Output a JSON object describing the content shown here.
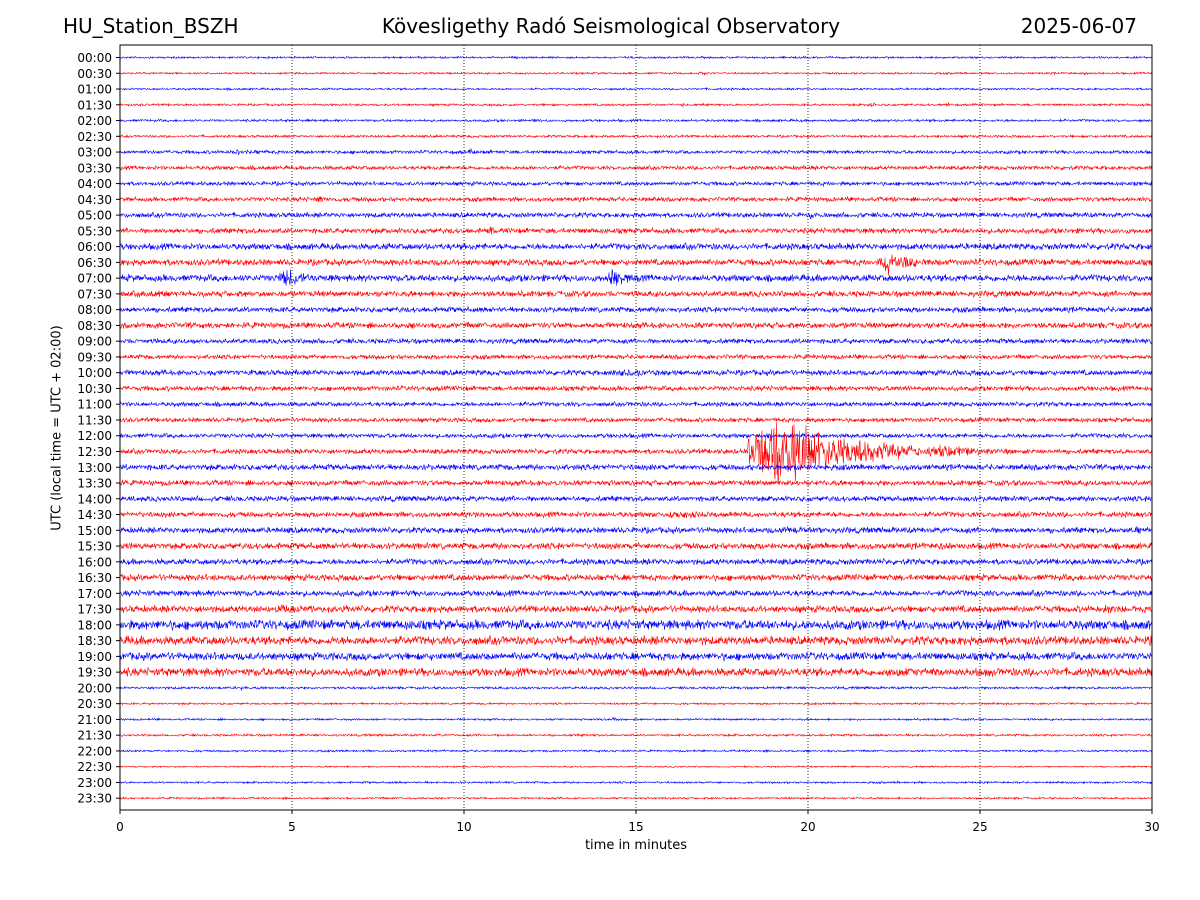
{
  "header": {
    "station": "HU_Station_BSZH",
    "observatory": "Kövesligethy Radó Seismological Observatory",
    "date": "2025-06-07"
  },
  "chart_data": {
    "type": "line",
    "title": "Kövesligethy Radó Seismological Observatory",
    "xlabel": "time in minutes",
    "ylabel": "UTC (local time = UTC + 02:00)",
    "xlim": [
      0,
      30
    ],
    "x_ticks": [
      "0",
      "5",
      "10",
      "15",
      "20",
      "25",
      "30"
    ],
    "grid": "vertical dotted lines at x ticks",
    "colors": {
      "even_rows": "#0000ff",
      "odd_rows": "#ff0000",
      "grid": "#000000"
    },
    "row_labels": [
      "00:00",
      "00:30",
      "01:00",
      "01:30",
      "02:00",
      "02:30",
      "03:00",
      "03:30",
      "04:00",
      "04:30",
      "05:00",
      "05:30",
      "06:00",
      "06:30",
      "07:00",
      "07:30",
      "08:00",
      "08:30",
      "09:00",
      "09:30",
      "10:00",
      "10:30",
      "11:00",
      "11:30",
      "12:00",
      "12:30",
      "13:00",
      "13:30",
      "14:00",
      "14:30",
      "15:00",
      "15:30",
      "16:00",
      "16:30",
      "17:00",
      "17:30",
      "18:00",
      "18:30",
      "19:00",
      "19:30",
      "20:00",
      "20:30",
      "21:00",
      "21:30",
      "22:00",
      "22:30",
      "23:00",
      "23:30"
    ],
    "noise_level": [
      0.8,
      0.8,
      0.8,
      0.9,
      1.0,
      1.0,
      1.4,
      1.6,
      1.6,
      1.8,
      2.0,
      2.2,
      2.6,
      2.6,
      2.8,
      2.4,
      2.2,
      2.4,
      2.0,
      1.8,
      2.2,
      2.0,
      1.8,
      1.8,
      1.8,
      2.0,
      2.4,
      2.2,
      2.2,
      2.2,
      2.4,
      2.6,
      2.4,
      2.6,
      2.4,
      2.8,
      4.0,
      3.6,
      3.2,
      3.4,
      1.0,
      0.8,
      0.8,
      0.9,
      0.8,
      0.6,
      0.8,
      0.8
    ],
    "events": [
      {
        "row": "00:30",
        "t": 16.8,
        "dur": 0.6,
        "amp": 3
      },
      {
        "row": "00:30",
        "t": 28.0,
        "dur": 0.3,
        "amp": 3
      },
      {
        "row": "01:30",
        "t": 16.3,
        "dur": 0.3,
        "amp": 3
      },
      {
        "row": "01:30",
        "t": 21.8,
        "dur": 0.3,
        "amp": 4
      },
      {
        "row": "01:30",
        "t": 24.0,
        "dur": 0.2,
        "amp": 5
      },
      {
        "row": "02:00",
        "t": 12.0,
        "dur": 0.3,
        "amp": 3
      },
      {
        "row": "03:00",
        "t": 3.3,
        "dur": 1.0,
        "amp": 4
      },
      {
        "row": "03:00",
        "t": 10.1,
        "dur": 0.3,
        "amp": 6
      },
      {
        "row": "04:30",
        "t": 5.7,
        "dur": 0.4,
        "amp": 7
      },
      {
        "row": "04:30",
        "t": 29.2,
        "dur": 0.4,
        "amp": 4
      },
      {
        "row": "05:00",
        "t": 20.0,
        "dur": 0.6,
        "amp": 5
      },
      {
        "row": "05:30",
        "t": 10.7,
        "dur": 0.4,
        "amp": 6
      },
      {
        "row": "06:30",
        "t": 22.1,
        "dur": 1.5,
        "amp": 16
      },
      {
        "row": "07:00",
        "t": 4.6,
        "dur": 1.5,
        "amp": 12
      },
      {
        "row": "07:00",
        "t": 14.2,
        "dur": 1.0,
        "amp": 13
      },
      {
        "row": "07:30",
        "t": 0.6,
        "dur": 2.0,
        "amp": 6
      },
      {
        "row": "10:00",
        "t": 2.5,
        "dur": 1.5,
        "amp": 4
      },
      {
        "row": "10:00",
        "t": 14.2,
        "dur": 3.5,
        "amp": 5
      },
      {
        "row": "10:30",
        "t": 22.6,
        "dur": 1.0,
        "amp": 4
      },
      {
        "row": "12:30",
        "t": 18.3,
        "dur": 5.0,
        "amp": 42
      },
      {
        "row": "12:30",
        "t": 23.3,
        "dur": 4.0,
        "amp": 8
      },
      {
        "row": "14:30",
        "t": 10.2,
        "dur": 0.4,
        "amp": 6
      },
      {
        "row": "14:30",
        "t": 15.8,
        "dur": 3.0,
        "amp": 5
      },
      {
        "row": "15:00",
        "t": 19.2,
        "dur": 1.5,
        "amp": 5
      },
      {
        "row": "15:00",
        "t": 29.5,
        "dur": 0.5,
        "amp": 5
      },
      {
        "row": "15:30",
        "t": 0.1,
        "dur": 0.5,
        "amp": 5
      },
      {
        "row": "15:30",
        "t": 23.8,
        "dur": 0.6,
        "amp": 5
      },
      {
        "row": "17:30",
        "t": 4.3,
        "dur": 2.3,
        "amp": 6
      },
      {
        "row": "17:30",
        "t": 28.5,
        "dur": 1.2,
        "amp": 7
      },
      {
        "row": "19:30",
        "t": 22.2,
        "dur": 3.2,
        "amp": 6
      },
      {
        "row": "20:00",
        "t": 3.5,
        "dur": 0.2,
        "amp": 4
      },
      {
        "row": "21:00",
        "t": 14.3,
        "dur": 0.3,
        "amp": 3
      }
    ]
  }
}
